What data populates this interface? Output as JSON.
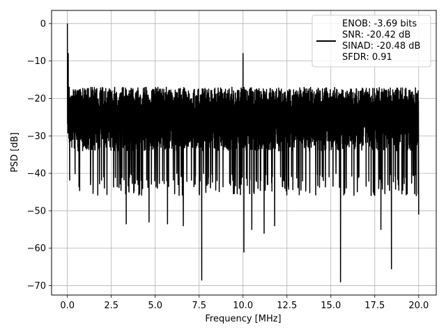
{
  "chart_data": {
    "type": "line",
    "title": "",
    "xlabel": "Frequency [MHz]",
    "ylabel": "PSD [dB]",
    "xlim": [
      -0.9,
      21.0
    ],
    "ylim": [
      -72.5,
      3.5
    ],
    "xticks": [
      0.0,
      2.5,
      5.0,
      7.5,
      10.0,
      12.5,
      15.0,
      17.5,
      20.0
    ],
    "xtick_labels": [
      "0.0",
      "2.5",
      "5.0",
      "7.5",
      "10.0",
      "12.5",
      "15.0",
      "17.5",
      "20.0"
    ],
    "yticks": [
      0,
      -10,
      -20,
      -30,
      -40,
      -50,
      -60,
      -70
    ],
    "ytick_labels": [
      "0",
      "−10",
      "−20",
      "−30",
      "−40",
      "−50",
      "−60",
      "−70"
    ],
    "grid": true,
    "legend_position": "top-right",
    "series": [
      {
        "color": "#000000",
        "x_range": [
          0.0,
          20.0
        ],
        "noise_floor_dB": [
          -15,
          -40
        ],
        "typical_level_dB": -27,
        "peaks": [
          {
            "x": 0.0,
            "y": 0.0
          },
          {
            "x": 0.05,
            "y": -8
          },
          {
            "x": 10.0,
            "y": -8
          }
        ],
        "notches": [
          {
            "x": 3.35,
            "y": -53.5
          },
          {
            "x": 4.65,
            "y": -53
          },
          {
            "x": 5.7,
            "y": -53.5
          },
          {
            "x": 6.6,
            "y": -54
          },
          {
            "x": 7.65,
            "y": -68.5
          },
          {
            "x": 10.05,
            "y": -61
          },
          {
            "x": 10.5,
            "y": -55
          },
          {
            "x": 11.2,
            "y": -56
          },
          {
            "x": 11.8,
            "y": -54
          },
          {
            "x": 15.55,
            "y": -69
          },
          {
            "x": 17.85,
            "y": -55
          },
          {
            "x": 18.45,
            "y": -65.5
          },
          {
            "x": 20.0,
            "y": -51
          }
        ]
      }
    ]
  },
  "legend": {
    "lines": [
      "ENOB: -3.69 bits",
      "SNR: -20.42 dB",
      "SINAD: -20.48 dB",
      "SFDR: 0.91"
    ]
  }
}
